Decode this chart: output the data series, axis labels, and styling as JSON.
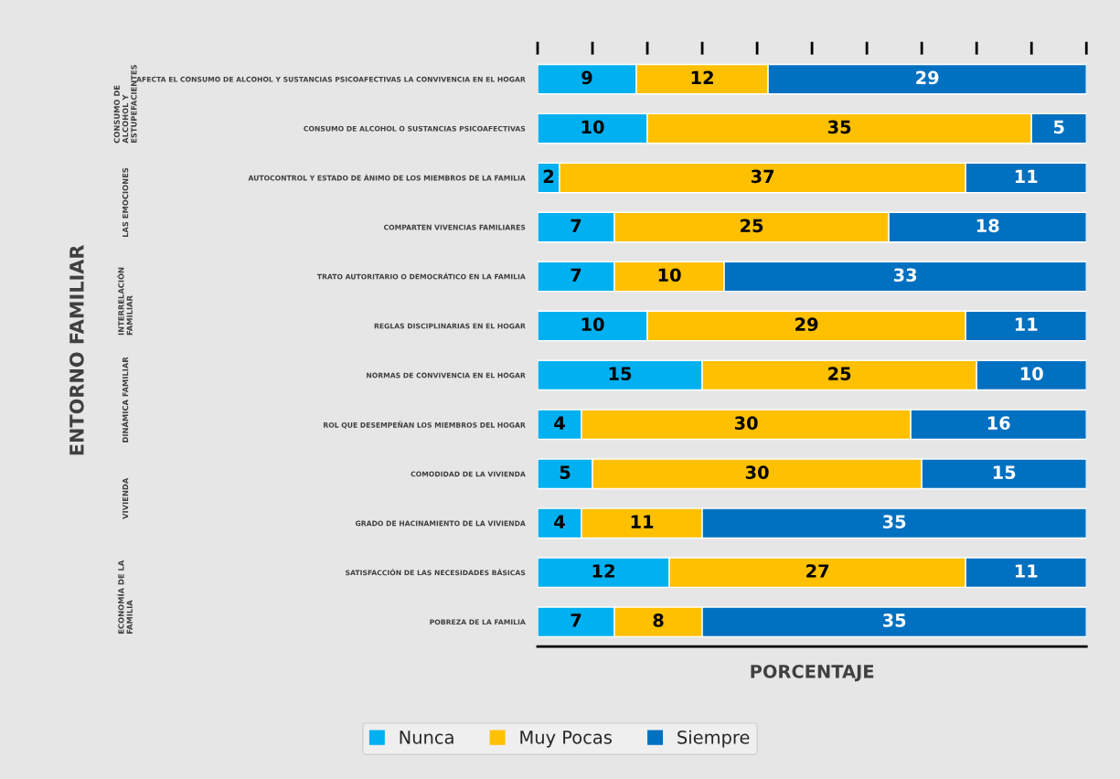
{
  "chart_data": {
    "type": "bar",
    "orientation": "horizontal",
    "stacked": true,
    "data_labels": true,
    "xlabel": "PORCENTAJE",
    "ylabel": "ENTORNO FAMILIAR",
    "categories": [
      "AFECTA EL CONSUMO DE ALCOHOL Y SUSTANCIAS PSICOAFECTIVAS LA CONVIVENCIA EN EL HOGAR",
      "CONSUMO DE ALCOHOL O SUSTANCIAS PSICOAFECTIVAS",
      "AUTOCONTROL Y ESTADO DE ÁNIMO DE LOS MIEMBROS DE LA FAMILIA",
      "COMPARTEN VIVENCIAS FAMILIARES",
      "TRATO AUTORITARIO O DEMOCRÁTICO EN LA FAMILIA",
      "REGLAS DISCIPLINARIAS EN EL HOGAR",
      "NORMAS DE CONVIVENCIA EN EL HOGAR",
      "ROL QUE DESEMPEÑAN LOS MIEMBROS DEL HOGAR",
      "COMODIDAD DE LA VIVIENDA",
      "GRADO DE HACINAMIENTO DE LA VIVIENDA",
      "SATISFACCIÓN DE LAS NECESIDADES BÁSICAS",
      "POBREZA DE LA FAMILIA"
    ],
    "series": [
      {
        "name": "Nunca",
        "color": "#00b0f0",
        "values": [
          9,
          10,
          2,
          7,
          7,
          10,
          15,
          4,
          5,
          4,
          12,
          7
        ]
      },
      {
        "name": "Muy Pocas",
        "color": "#ffc000",
        "values": [
          12,
          35,
          37,
          25,
          10,
          29,
          25,
          30,
          30,
          11,
          27,
          8
        ]
      },
      {
        "name": "Siempre",
        "color": "#0070c0",
        "values": [
          29,
          5,
          11,
          18,
          33,
          11,
          10,
          16,
          15,
          35,
          11,
          35
        ]
      }
    ],
    "xlim": [
      0,
      50
    ],
    "xticks": [
      {
        "value": 0,
        "label": null
      },
      {
        "value": 5,
        "label": null
      },
      {
        "value": 10,
        "label": null
      },
      {
        "value": 15,
        "label": null
      },
      {
        "value": 20,
        "label": null
      },
      {
        "value": 25,
        "label": null
      },
      {
        "value": 30,
        "label": null
      },
      {
        "value": 35,
        "label": null
      },
      {
        "value": 40,
        "label": null
      },
      {
        "value": 45,
        "label": null
      },
      {
        "value": 50,
        "label": null
      }
    ],
    "tick_labels": "y",
    "legend": "bottom",
    "grid": false,
    "annotations": [
      "CONSUMO DE ALCOHOL Y ESTUPEFACIENTES",
      "LAS EMOCIONES",
      "INTERRELACIÓN FAMILIAR",
      "DINÁMICA FAMILIAR",
      "VIVIENDA",
      "ECONOMÍA DE LA FAMILIA"
    ]
  }
}
